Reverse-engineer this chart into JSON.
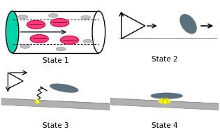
{
  "bg_color": "#ffffff",
  "state_labels": [
    "State 1",
    "State 2",
    "State 3",
    "State 4"
  ],
  "label_fontsize": 7.5,
  "tube_edge": "#000000",
  "cap_color": "#00d4a8",
  "rbc_fill": "#ff3b7a",
  "rbc_edge": "#cc0044",
  "disk_color": "#4a6070",
  "yellow_color": "#ffff00",
  "yellow_edge": "#cccc00",
  "surface_color": "#b0b0b0",
  "surface_edge": "#888888"
}
